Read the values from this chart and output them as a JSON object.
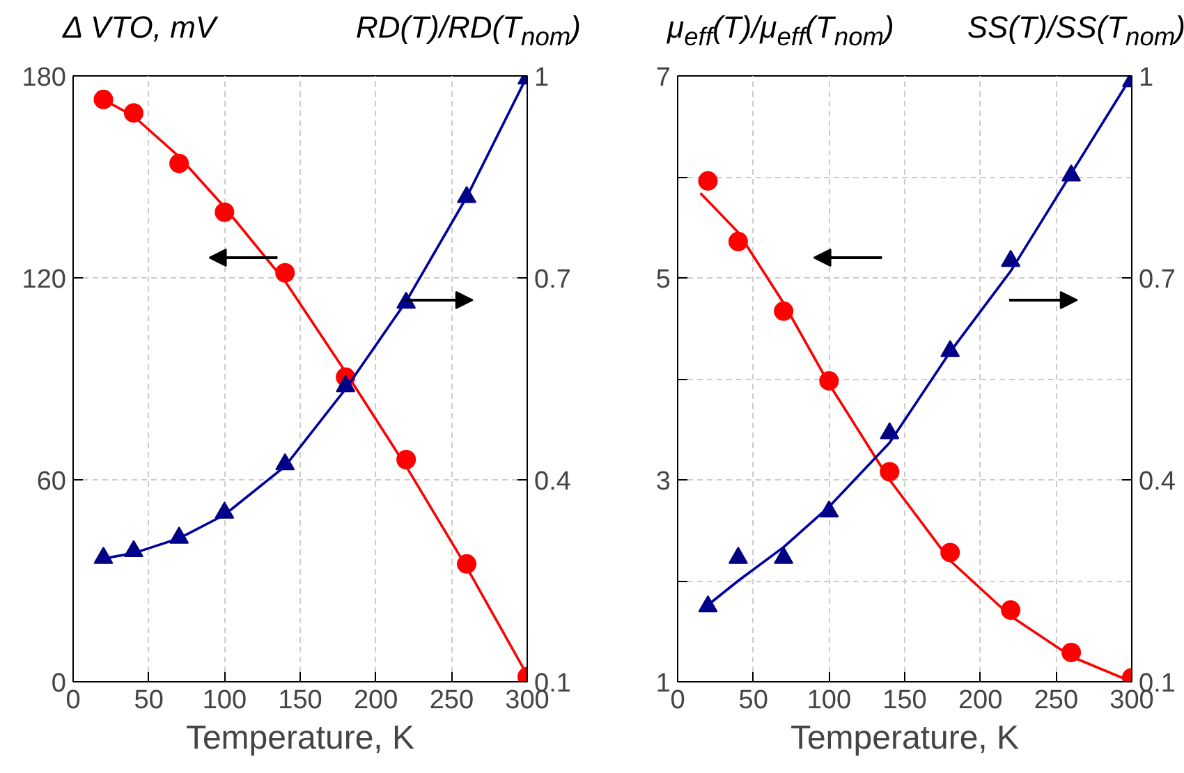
{
  "chart_data": [
    {
      "type": "scatter",
      "xlabel": "Temperature, K",
      "ylabel": "Δ VTO, mV",
      "y2label": "RD(T)/RD(T$_{nom}$)",
      "xlim": [
        0,
        300
      ],
      "xticks": [
        0,
        50,
        100,
        150,
        200,
        250,
        300
      ],
      "ylim": [
        0,
        180
      ],
      "yticks": [
        0,
        60,
        120,
        180
      ],
      "y2lim": [
        0.1,
        1
      ],
      "y2ticks": [
        0.1,
        0.4,
        0.7,
        1
      ],
      "grid": true,
      "series": [
        {
          "marker": "circle",
          "color": "#ff0000",
          "x": [
            20,
            40,
            70,
            100,
            140,
            180,
            220,
            260,
            300
          ],
          "values": [
            173,
            169,
            154,
            139.5,
            121.5,
            90.5,
            66,
            35,
            1.5
          ]
        },
        {
          "type": "line",
          "line_style": "solid",
          "color": "#ff0000",
          "x": [
            20,
            40,
            70,
            100,
            140,
            180,
            220,
            260,
            300
          ],
          "values": [
            173,
            168,
            156,
            141,
            119,
            92,
            64,
            34,
            2
          ]
        },
        {
          "marker": "triangle",
          "axis": "y2",
          "color": "#000080",
          "x": [
            20,
            40,
            70,
            100,
            140,
            180,
            220,
            260,
            300
          ],
          "values": [
            0.284,
            0.294,
            0.314,
            0.351,
            0.423,
            0.539,
            0.663,
            0.82,
            0.996
          ]
        },
        {
          "type": "line",
          "line_style": "solid",
          "axis": "y2",
          "color": "#0000a0",
          "x": [
            20,
            40,
            70,
            100,
            140,
            180,
            220,
            260,
            300
          ],
          "values": [
            0.283,
            0.291,
            0.313,
            0.348,
            0.42,
            0.535,
            0.665,
            0.82,
            1.0
          ]
        }
      ]
    },
    {
      "type": "scatter",
      "xlabel": "Temperature, K",
      "ylabel": "μ$_{eff}$(T)/μ$_{eff}$(T$_{nom}$)",
      "y2label": "SS(T)/SS(T$_{nom}$)",
      "xlim": [
        0,
        300
      ],
      "xticks": [
        0,
        50,
        100,
        150,
        200,
        250,
        300
      ],
      "ylim": [
        1,
        7
      ],
      "yticks": [
        1,
        {
          "value": 2,
          "label": null
        },
        3,
        {
          "value": 4,
          "label": null
        },
        5,
        {
          "value": 6,
          "label": null
        },
        7
      ],
      "y2lim": [
        0.1,
        1
      ],
      "y2ticks": [
        0.1,
        0.4,
        0.7,
        1
      ],
      "grid": true,
      "series": [
        {
          "marker": "circle",
          "color": "#ff0000",
          "x": [
            20,
            40,
            70,
            100,
            140,
            180,
            220,
            260,
            300
          ],
          "values": [
            5.96,
            5.36,
            4.67,
            3.98,
            3.08,
            2.28,
            1.71,
            1.29,
            1.04
          ]
        },
        {
          "type": "line",
          "line_style": "solid",
          "color": "#ff0000",
          "x": [
            15,
            40,
            70,
            100,
            140,
            180,
            220,
            260,
            300
          ],
          "values": [
            5.84,
            5.45,
            4.75,
            3.95,
            3.0,
            2.2,
            1.65,
            1.25,
            1.0
          ]
        },
        {
          "marker": "triangle",
          "axis": "y2",
          "color": "#000080",
          "x": [
            20,
            40,
            70,
            100,
            140,
            180,
            220,
            260,
            300
          ],
          "values": [
            0.212,
            0.284,
            0.284,
            0.353,
            0.469,
            0.591,
            0.725,
            0.852,
            0.992
          ]
        },
        {
          "type": "line",
          "line_style": "solid",
          "axis": "y2",
          "color": "#0000a0",
          "x": [
            15,
            40,
            70,
            100,
            140,
            180,
            220,
            260,
            300
          ],
          "values": [
            0.205,
            0.25,
            0.3,
            0.36,
            0.455,
            0.59,
            0.71,
            0.855,
            1.0
          ]
        }
      ]
    }
  ]
}
